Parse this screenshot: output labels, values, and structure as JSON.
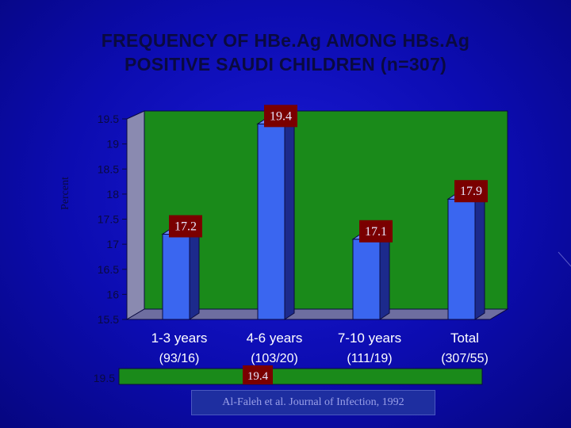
{
  "title": {
    "line1": "FREQUENCY OF HBe.Ag AMONG HBs.Ag",
    "line2": "POSITIVE SAUDI CHILDREN (n=307)"
  },
  "footer": "Al-Faleh et al. Journal of Infection, 1992",
  "colors": {
    "background": "#0c0cb0",
    "plot_area": "#1a8a1a",
    "bar_front": "#3a66f0",
    "bar_side": "#1c2a8c",
    "label_box": "#7a0000",
    "text_dark": "#0a0a40"
  },
  "chart_data": {
    "type": "bar",
    "title": "FREQUENCY OF HBe.Ag AMONG HBs.Ag POSITIVE SAUDI CHILDREN (n=307)",
    "ylabel": "Percent",
    "xlabel": "",
    "categories": [
      "1-3 years",
      "4-6 years",
      "7-10 years",
      "Total"
    ],
    "category_counts": [
      "(93/16)",
      "(103/20)",
      "(111/19)",
      "(307/55)"
    ],
    "values": [
      17.2,
      19.4,
      17.1,
      17.9
    ],
    "data_labels": [
      "17.2",
      "19.4",
      "17.1",
      "17.9"
    ],
    "ylim": [
      15.5,
      19.5
    ],
    "yticks": [
      "15.5",
      "16",
      "16.5",
      "17",
      "17.5",
      "18",
      "18.5",
      "19",
      "19.5"
    ],
    "grid": false,
    "legend": "none",
    "partial_second_chart": {
      "ytick": "19.5",
      "data_label": "19.4"
    }
  }
}
